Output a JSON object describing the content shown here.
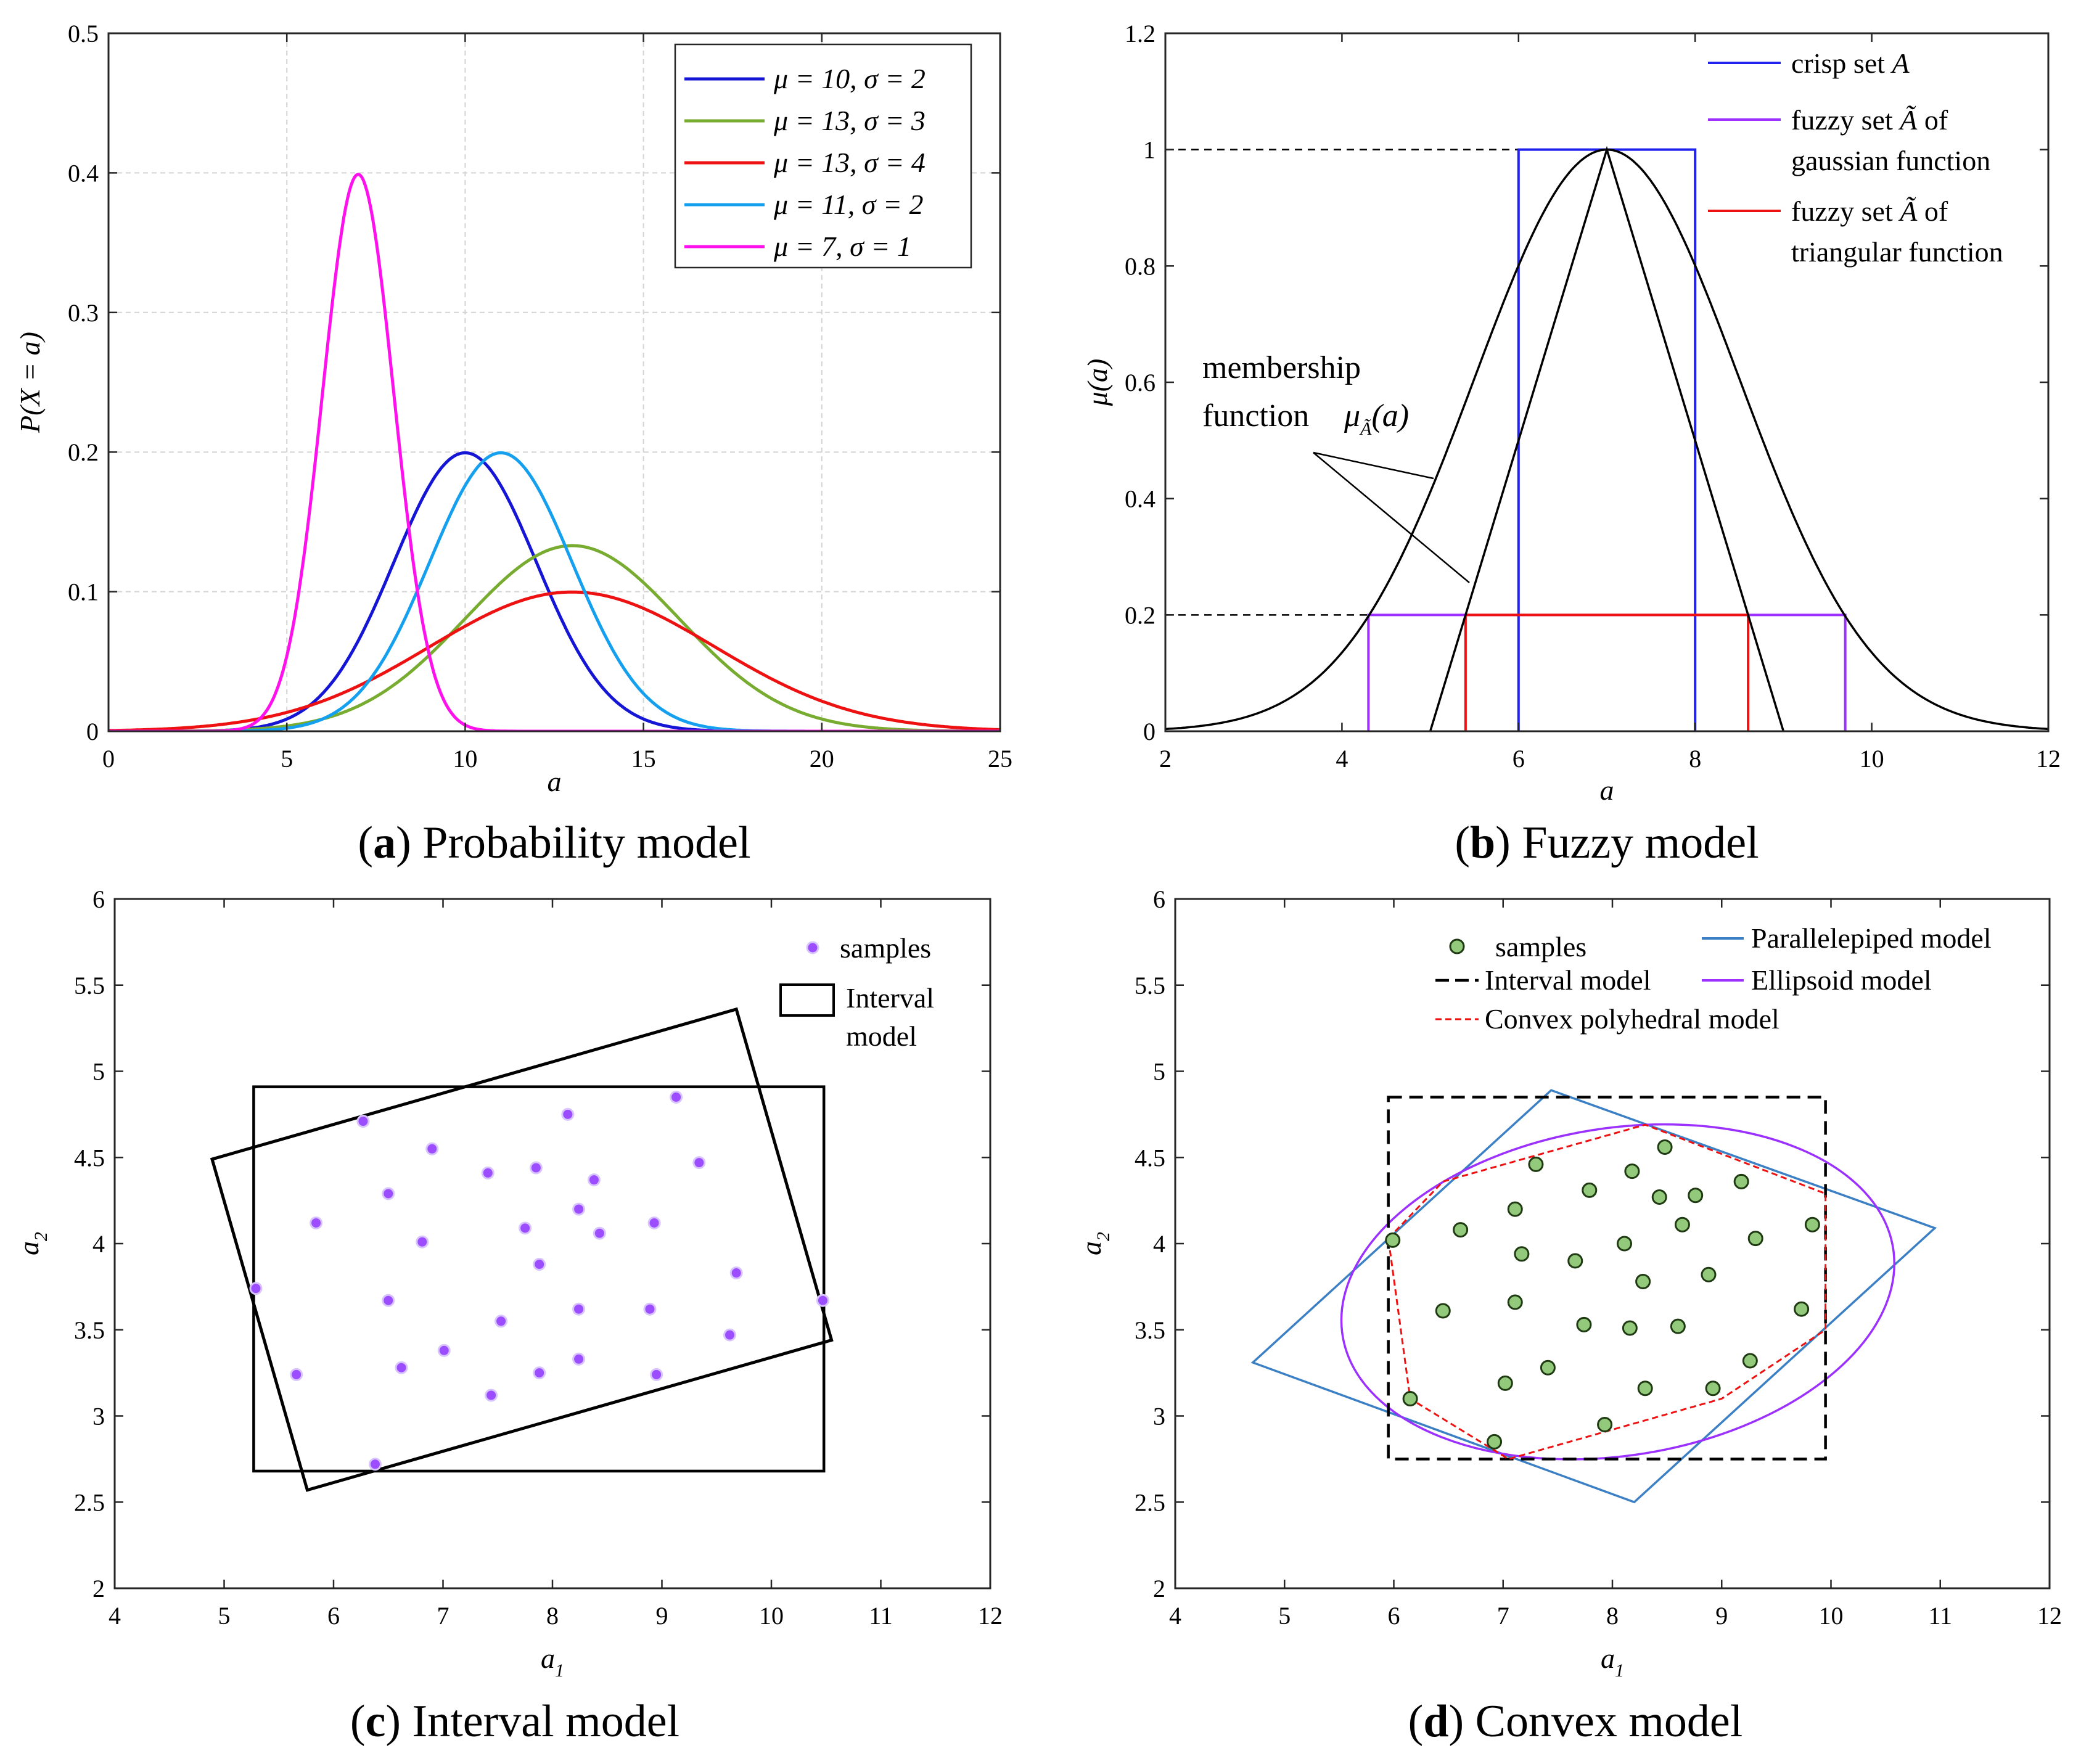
{
  "chart_data": [
    {
      "id": "a",
      "type": "line",
      "caption_letter": "a",
      "caption_text": "Probability model",
      "caption_open": "(",
      "caption_close": ")",
      "xlabel": "a",
      "ylabel": "P(X = a)",
      "xlim": [
        0,
        25
      ],
      "ylim": [
        0,
        0.5
      ],
      "grid": true,
      "legend_position": "top-right",
      "xticks": [
        "0",
        "5",
        "10",
        "15",
        "20",
        "25"
      ],
      "yticks": [
        "0",
        "0.1",
        "0.2",
        "0.3",
        "0.4",
        "0.5"
      ],
      "series": [
        {
          "name": "μ = 10, σ = 2",
          "mu": 10,
          "sigma": 2,
          "color": "#1515d6"
        },
        {
          "name": "μ = 13, σ = 3",
          "mu": 13,
          "sigma": 3,
          "color": "#77ac30"
        },
        {
          "name": "μ = 13, σ = 4",
          "mu": 13,
          "sigma": 4,
          "color": "#ee1111"
        },
        {
          "name": "μ = 11, σ = 2",
          "mu": 11,
          "sigma": 2,
          "color": "#14a0ee"
        },
        {
          "name": "μ = 7, σ = 1",
          "mu": 7,
          "sigma": 1,
          "color": "#ff11ee"
        }
      ]
    },
    {
      "id": "b",
      "type": "line",
      "caption_letter": "b",
      "caption_text": "Fuzzy model",
      "caption_open": "(",
      "caption_close": ")",
      "xlabel": "a",
      "ylabel": "μ(a)",
      "xlim": [
        2,
        12
      ],
      "ylim": [
        0,
        1.2
      ],
      "grid": false,
      "legend_position": "top-right",
      "xticks": [
        "2",
        "4",
        "6",
        "8",
        "10",
        "12"
      ],
      "yticks": [
        "0",
        "0.2",
        "0.4",
        "0.6",
        "0.8",
        "1",
        "1.2"
      ],
      "membership_label": [
        "membership",
        "function"
      ],
      "membership_symbol": "μ",
      "membership_sub": "Ã",
      "membership_arg": "(a)",
      "legend": [
        {
          "label": "crisp set",
          "symbol": "A",
          "color": "#2222ee"
        },
        {
          "label": "fuzzy set",
          "symbol": "Ã",
          "suffix": "of",
          "label2": "gaussian function",
          "color": "#9b30ff"
        },
        {
          "label": "fuzzy set",
          "symbol": "Ã",
          "suffix": "of",
          "label2": "triangular function",
          "color": "#ee1111"
        }
      ],
      "gaussian": {
        "center": 7,
        "sigma": 1.5,
        "color": "#000000"
      },
      "triangle": {
        "x": [
          5,
          7,
          9
        ],
        "y": [
          0,
          1,
          0
        ],
        "color": "#000000"
      },
      "crisp_set": {
        "x0": 6,
        "x1": 8,
        "height": 1,
        "color": "#2222ee"
      },
      "fuzzy_gaussian_cut": {
        "x0": 4.3,
        "x1": 9.7,
        "height": 0.2,
        "color": "#9b30ff"
      },
      "fuzzy_triangular_cut": {
        "x0": 5.4,
        "x1": 8.6,
        "height": 0.2,
        "color": "#ee1111"
      },
      "dashed_levels": [
        1,
        0.2
      ]
    },
    {
      "id": "c",
      "type": "scatter",
      "caption_letter": "c",
      "caption_text": "Interval model",
      "caption_open": "(",
      "caption_close": ")",
      "xlabel": "a",
      "xlabel_sub": "1",
      "ylabel": "a",
      "ylabel_sub": "2",
      "xlim": [
        4,
        12
      ],
      "ylim": [
        2,
        6
      ],
      "grid": false,
      "legend_position": "top-right",
      "xticks": [
        "4",
        "5",
        "6",
        "7",
        "8",
        "9",
        "10",
        "11",
        "12"
      ],
      "yticks": [
        "2",
        "2.5",
        "3",
        "3.5",
        "4",
        "4.5",
        "5",
        "5.5",
        "6"
      ],
      "legend": [
        {
          "label": "samples",
          "color": "#9b4dff"
        },
        {
          "label": "Interval",
          "label2": "model",
          "color": "#000000"
        }
      ],
      "samples": [
        [
          6.27,
          4.71
        ],
        [
          8.14,
          4.75
        ],
        [
          9.13,
          4.85
        ],
        [
          6.9,
          4.55
        ],
        [
          7.41,
          4.41
        ],
        [
          7.85,
          4.44
        ],
        [
          8.38,
          4.37
        ],
        [
          9.34,
          4.47
        ],
        [
          6.5,
          4.29
        ],
        [
          5.84,
          4.12
        ],
        [
          6.81,
          4.01
        ],
        [
          7.75,
          4.09
        ],
        [
          8.24,
          4.2
        ],
        [
          8.43,
          4.06
        ],
        [
          8.93,
          4.12
        ],
        [
          7.88,
          3.88
        ],
        [
          5.29,
          3.74
        ],
        [
          9.68,
          3.83
        ],
        [
          6.5,
          3.67
        ],
        [
          7.53,
          3.55
        ],
        [
          8.24,
          3.62
        ],
        [
          8.89,
          3.62
        ],
        [
          9.62,
          3.47
        ],
        [
          10.47,
          3.67
        ],
        [
          5.66,
          3.24
        ],
        [
          6.62,
          3.28
        ],
        [
          7.01,
          3.38
        ],
        [
          7.88,
          3.25
        ],
        [
          8.24,
          3.33
        ],
        [
          8.95,
          3.24
        ],
        [
          7.44,
          3.12
        ],
        [
          6.38,
          2.72
        ]
      ],
      "interval_box": {
        "x0": 5.27,
        "x1": 10.48,
        "y0": 2.68,
        "y1": 4.91
      },
      "rotated_box": [
        [
          4.89,
          4.49
        ],
        [
          9.68,
          5.36
        ],
        [
          10.55,
          3.44
        ],
        [
          5.76,
          2.57
        ]
      ]
    },
    {
      "id": "d",
      "type": "scatter",
      "caption_letter": "d",
      "caption_text": "Convex model",
      "caption_open": "(",
      "caption_close": ")",
      "xlabel": "a",
      "xlabel_sub": "1",
      "ylabel": "a",
      "ylabel_sub": "2",
      "xlim": [
        4,
        12
      ],
      "ylim": [
        2,
        6
      ],
      "grid": false,
      "legend_position": "top",
      "xticks": [
        "4",
        "5",
        "6",
        "7",
        "8",
        "9",
        "10",
        "11",
        "12"
      ],
      "yticks": [
        "2",
        "2.5",
        "3",
        "3.5",
        "4",
        "4.5",
        "5",
        "5.5",
        "6"
      ],
      "legend": [
        {
          "label": "samples",
          "color": "#92c97a"
        },
        {
          "label": "Parallelepiped model",
          "color": "#3b7fc4"
        },
        {
          "label": "Interval model",
          "color": "#000000"
        },
        {
          "label": "Ellipsoid model",
          "color": "#9b30ff"
        },
        {
          "label": "Convex polyhedral model",
          "color": "#ee1111"
        }
      ],
      "samples": [
        [
          8.48,
          4.56
        ],
        [
          7.3,
          4.46
        ],
        [
          8.18,
          4.42
        ],
        [
          9.18,
          4.36
        ],
        [
          7.79,
          4.31
        ],
        [
          8.43,
          4.27
        ],
        [
          8.76,
          4.28
        ],
        [
          7.11,
          4.2
        ],
        [
          8.64,
          4.11
        ],
        [
          9.83,
          4.11
        ],
        [
          6.61,
          4.08
        ],
        [
          9.31,
          4.03
        ],
        [
          5.99,
          4.02
        ],
        [
          8.11,
          4.0
        ],
        [
          7.17,
          3.94
        ],
        [
          7.66,
          3.9
        ],
        [
          8.88,
          3.82
        ],
        [
          8.28,
          3.78
        ],
        [
          7.11,
          3.66
        ],
        [
          6.45,
          3.61
        ],
        [
          9.73,
          3.62
        ],
        [
          7.74,
          3.53
        ],
        [
          8.16,
          3.51
        ],
        [
          8.6,
          3.52
        ],
        [
          7.41,
          3.28
        ],
        [
          9.26,
          3.32
        ],
        [
          7.02,
          3.19
        ],
        [
          8.3,
          3.16
        ],
        [
          8.92,
          3.16
        ],
        [
          6.15,
          3.1
        ],
        [
          7.93,
          2.95
        ],
        [
          6.92,
          2.85
        ]
      ],
      "interval_box": {
        "x0": 5.95,
        "x1": 9.95,
        "y0": 2.75,
        "y1": 4.85
      },
      "parallelepiped": [
        [
          7.44,
          4.89
        ],
        [
          10.95,
          4.09
        ],
        [
          8.2,
          2.5
        ],
        [
          4.71,
          3.31
        ]
      ],
      "ellipse": {
        "cx": 8.05,
        "cy": 3.72,
        "rx": 2.55,
        "ry": 0.95,
        "angle_deg": 9
      },
      "convex_polyhedron": [
        [
          5.95,
          4.03
        ],
        [
          6.45,
          4.36
        ],
        [
          8.3,
          4.69
        ],
        [
          9.95,
          4.29
        ],
        [
          9.95,
          3.5
        ],
        [
          9.0,
          3.1
        ],
        [
          7.05,
          2.75
        ],
        [
          6.15,
          3.1
        ]
      ]
    }
  ]
}
